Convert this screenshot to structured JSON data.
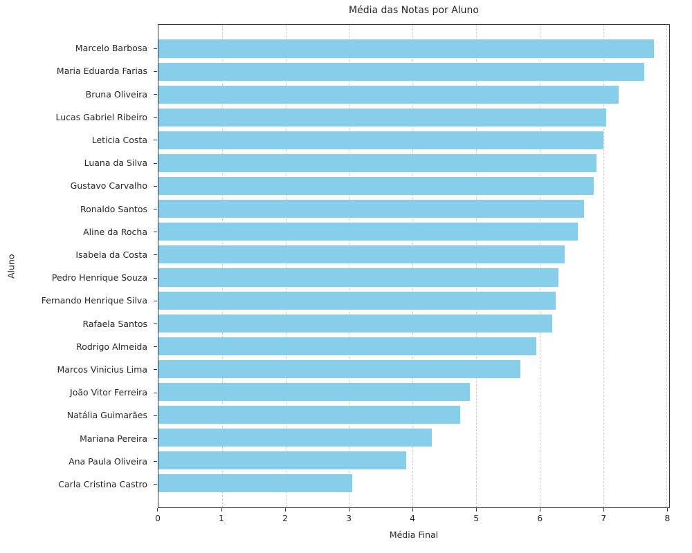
{
  "chart_data": {
    "type": "bar",
    "orientation": "horizontal",
    "title": "Média das Notas por Aluno",
    "xlabel": "Média Final",
    "ylabel": "Aluno",
    "xlim": [
      0,
      8.04
    ],
    "x_ticks": [
      0,
      1,
      2,
      3,
      4,
      5,
      6,
      7,
      8
    ],
    "grid": "vertical-dashed",
    "legend": "none",
    "bar_color": "#87CEEB",
    "categories": [
      "Marcelo Barbosa",
      "Maria Eduarda Farias",
      "Bruna Oliveira",
      "Lucas Gabriel Ribeiro",
      "Leticia Costa",
      "Luana da Silva",
      "Gustavo Carvalho",
      "Ronaldo Santos",
      "Aline da Rocha",
      "Isabela da Costa",
      "Pedro Henrique Souza",
      "Fernando Henrique Silva",
      "Rafaela Santos",
      "Rodrigo Almeida",
      "Marcos Vinicius Lima",
      "João Vitor Ferreira",
      "Natália Guimarães",
      "Mariana Pereira",
      "Ana Paula Oliveira",
      "Carla Cristina Castro"
    ],
    "values": [
      7.8,
      7.65,
      7.25,
      7.05,
      7.0,
      6.9,
      6.85,
      6.7,
      6.6,
      6.4,
      6.3,
      6.25,
      6.2,
      5.95,
      5.7,
      4.9,
      4.75,
      4.3,
      3.9,
      3.05
    ]
  }
}
